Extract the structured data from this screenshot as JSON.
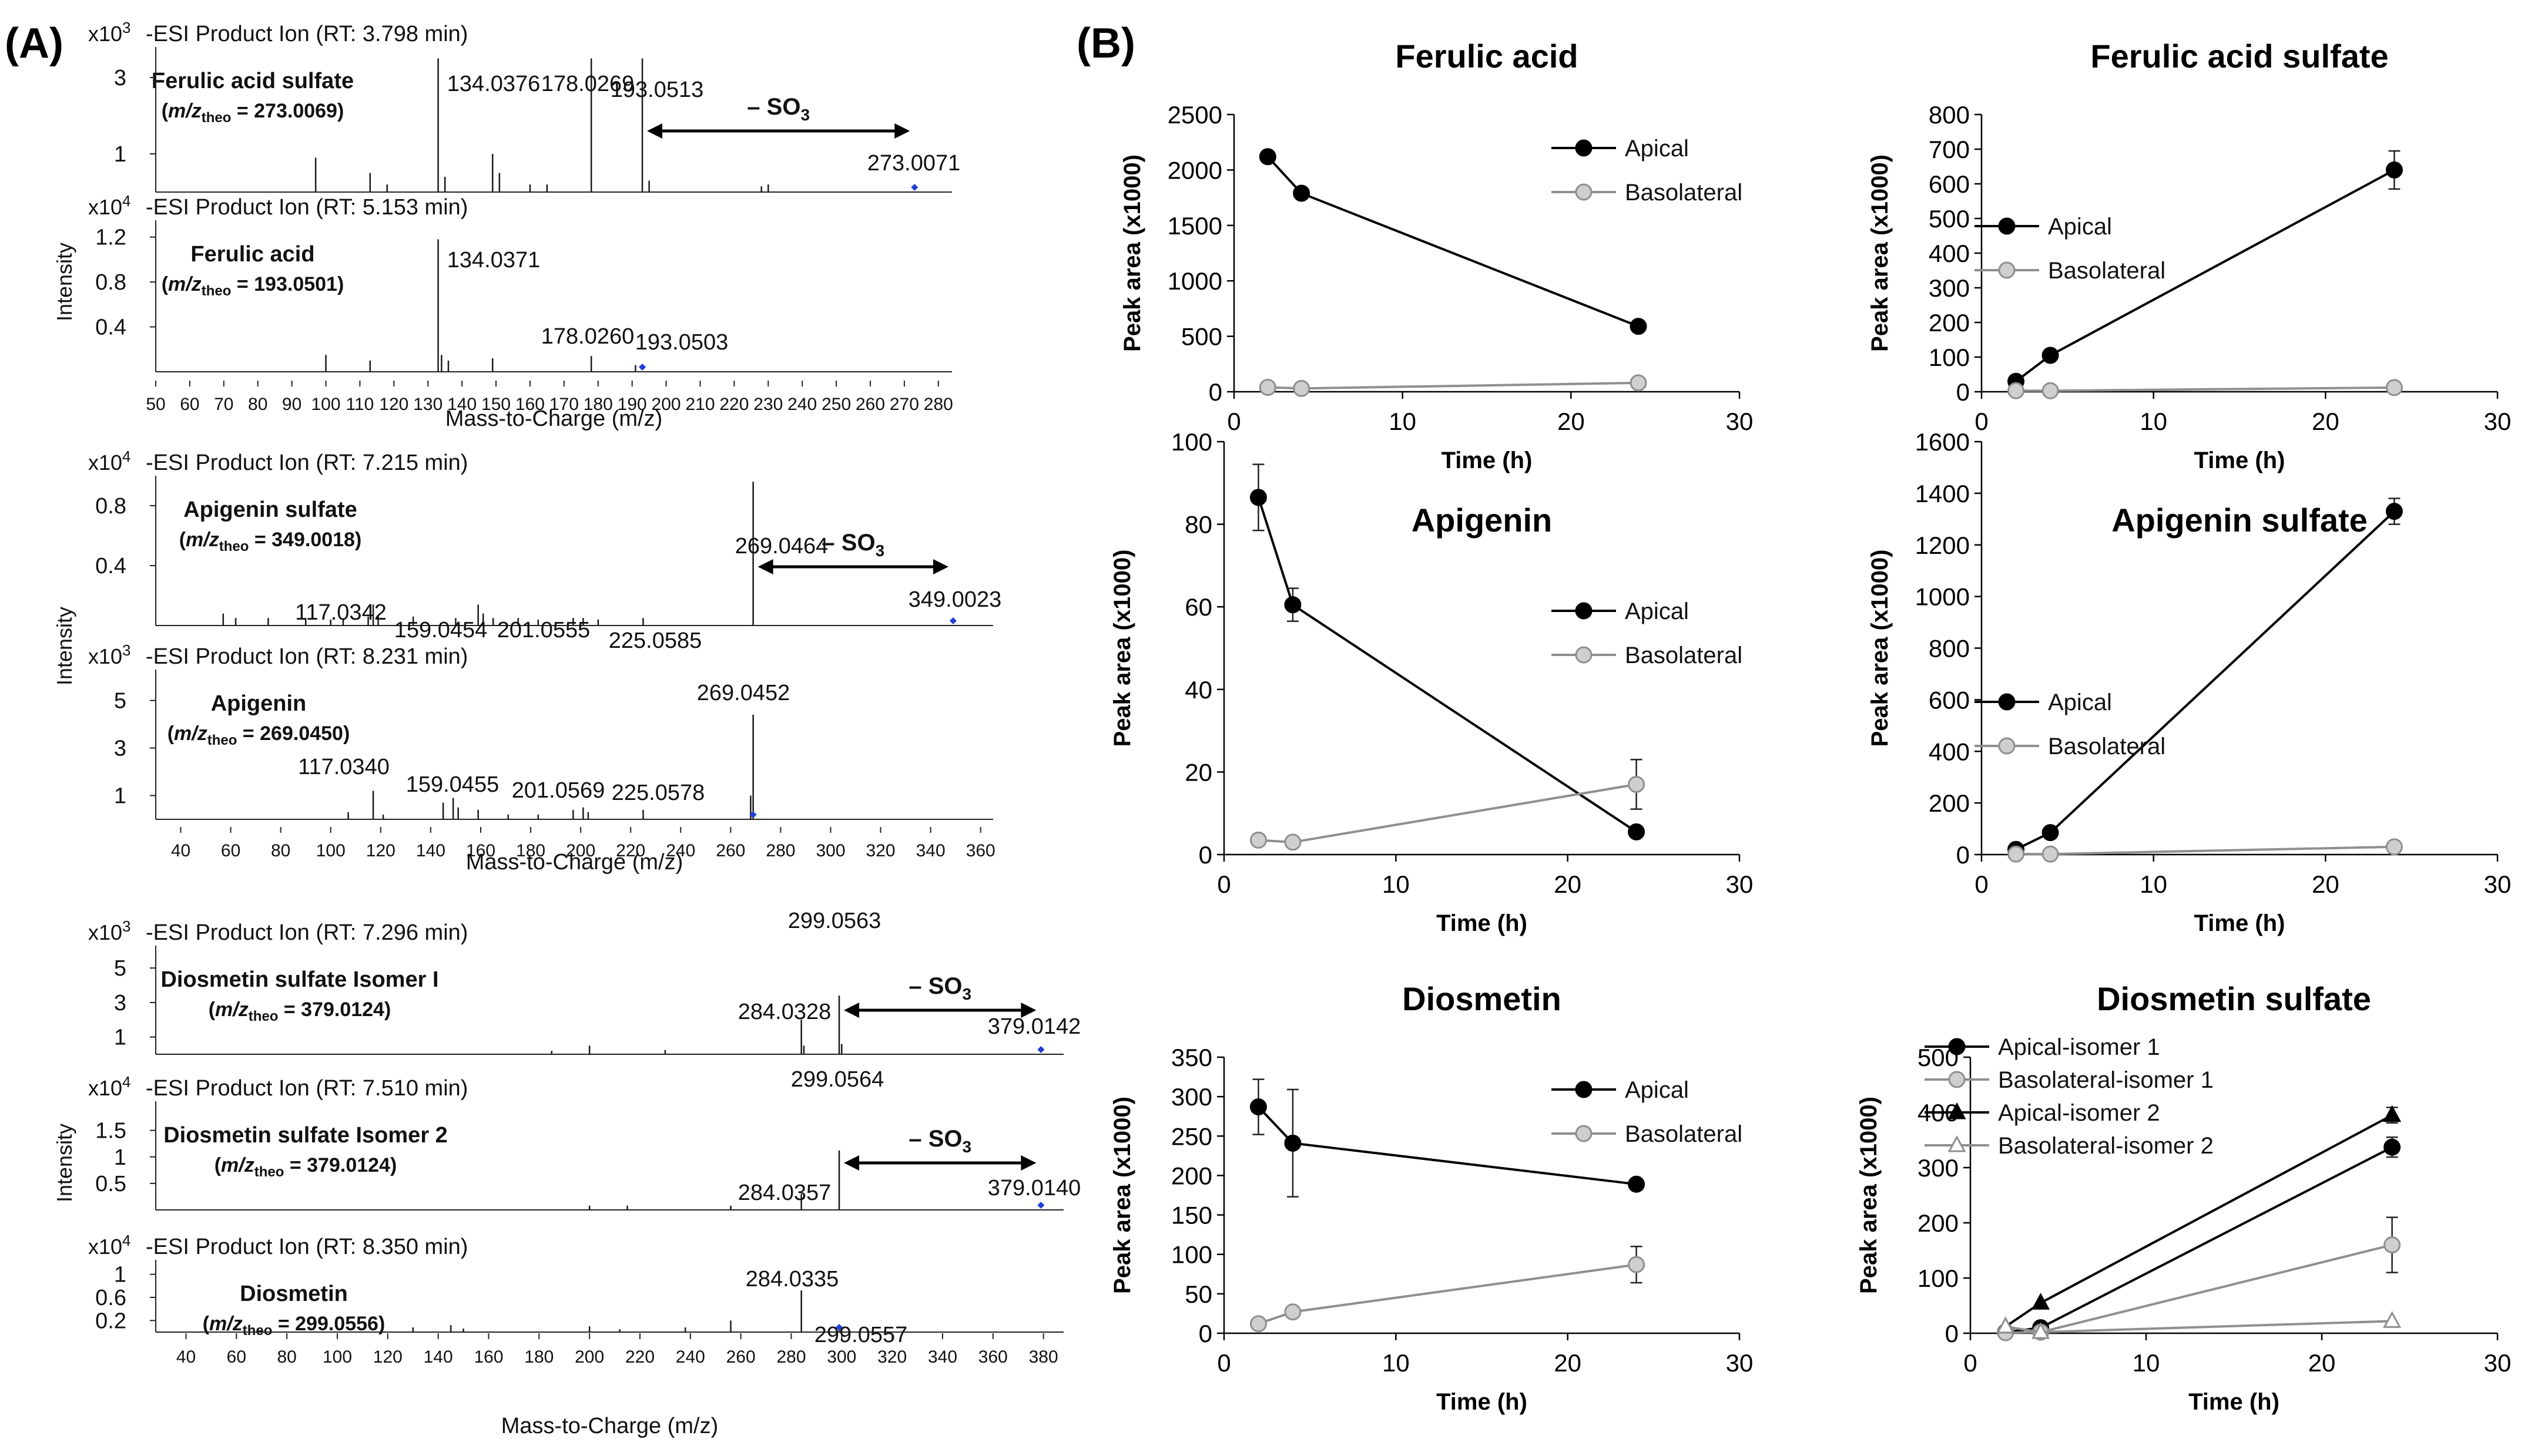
{
  "panel_labels": {
    "a": "(A)",
    "b": "(B)"
  },
  "colors": {
    "apical": "#000000",
    "basolateral": "#8f8f8f",
    "baso_fill": "#cfcfcf",
    "precursor": "#1f3fd6",
    "spectrum": "#1a1a1a"
  },
  "ms": {
    "intensity_label": "Intensity",
    "mz_label": "Mass-to-Charge (m/z)",
    "so3_label": "– SO",
    "so3_sub": "3",
    "groups": [
      {
        "x_ticks": [
          "50",
          "60",
          "70",
          "80",
          "90",
          "100",
          "110",
          "120",
          "130",
          "140",
          "150",
          "160",
          "170",
          "180",
          "190",
          "200",
          "210",
          "220",
          "230",
          "240",
          "250",
          "260",
          "270",
          "280"
        ],
        "spectra": [
          {
            "exp": "x10",
            "exp_sup": "3",
            "header": "-ESI Product Ion (RT: 3.798 min)",
            "name": "Ferulic acid sulfate",
            "mz_pre": "(m/z",
            "mz_sub": "theo",
            "mz_post": " = 273.0069)",
            "y_ticks": [
              "3",
              "1"
            ],
            "peak_labels": [
              "134.0376",
              "178.0269",
              "193.0513",
              "273.0071"
            ]
          },
          {
            "exp": "x10",
            "exp_sup": "4",
            "header": "-ESI Product Ion (RT: 5.153 min)",
            "name": "Ferulic acid",
            "mz_pre": "(m/z",
            "mz_sub": "theo",
            "mz_post": " = 193.0501)",
            "y_ticks": [
              "1.2",
              "0.8",
              "0.4"
            ],
            "peak_labels": [
              "134.0371",
              "178.0260",
              "193.0503"
            ]
          }
        ]
      },
      {
        "x_ticks": [
          "40",
          "60",
          "80",
          "100",
          "120",
          "140",
          "160",
          "180",
          "200",
          "220",
          "240",
          "260",
          "280",
          "300",
          "320",
          "340",
          "360"
        ],
        "spectra": [
          {
            "exp": "x10",
            "exp_sup": "4",
            "header": "-ESI Product Ion (RT: 7.215 min)",
            "name": "Apigenin sulfate",
            "mz_pre": "(m/z",
            "mz_sub": "theo",
            "mz_post": " = 349.0018)",
            "y_ticks": [
              "0.8",
              "0.4"
            ],
            "peak_labels": [
              "269.0464",
              "117.0342",
              "159.0454",
              "201.0555",
              "225.0585",
              "349.0023"
            ]
          },
          {
            "exp": "x10",
            "exp_sup": "3",
            "header": "-ESI Product Ion (RT: 8.231 min)",
            "name": "Apigenin",
            "mz_pre": "(m/z",
            "mz_sub": "theo",
            "mz_post": " = 269.0450)",
            "y_ticks": [
              "5",
              "3",
              "1"
            ],
            "peak_labels": [
              "269.0452",
              "117.0340",
              "159.0455",
              "201.0569",
              "225.0578"
            ]
          }
        ]
      },
      {
        "x_ticks": [
          "40",
          "60",
          "80",
          "100",
          "120",
          "140",
          "160",
          "180",
          "200",
          "220",
          "240",
          "260",
          "280",
          "300",
          "320",
          "340",
          "360",
          "380"
        ],
        "spectra": [
          {
            "exp": "x10",
            "exp_sup": "3",
            "header": "-ESI Product Ion (RT: 7.296 min)",
            "name": "Diosmetin sulfate Isomer I",
            "mz_pre": "(m/z",
            "mz_sub": "theo",
            "mz_post": " = 379.0124)",
            "y_ticks": [
              "5",
              "3",
              "1"
            ],
            "peak_labels": [
              "299.0563",
              "284.0328",
              "379.0142"
            ]
          },
          {
            "exp": "x10",
            "exp_sup": "4",
            "header": "-ESI Product Ion (RT: 7.510 min)",
            "name": "Diosmetin sulfate Isomer 2",
            "mz_pre": "(m/z",
            "mz_sub": "theo",
            "mz_post": " = 379.0124)",
            "y_ticks": [
              "1.5",
              "1",
              "0.5"
            ],
            "peak_labels": [
              "299.0564",
              "284.0357",
              "379.0140"
            ]
          },
          {
            "exp": "x10",
            "exp_sup": "4",
            "header": "-ESI Product Ion (RT: 8.350 min)",
            "name": "Diosmetin",
            "mz_pre": "(m/z",
            "mz_sub": "theo",
            "mz_post": " = 299.0556)",
            "y_ticks": [
              "1",
              "0.6",
              "0.2"
            ],
            "peak_labels": [
              "284.0335",
              "299.0557"
            ]
          }
        ]
      }
    ]
  },
  "chart_data": [
    {
      "type": "line",
      "title": "Ferulic acid",
      "xlabel": "Time (h)",
      "ylabel": "Peak area (x1000)",
      "xlim": [
        0,
        30
      ],
      "ylim": [
        0,
        2500
      ],
      "x_ticks": [
        0,
        10,
        20,
        30
      ],
      "y_ticks": [
        0,
        500,
        1000,
        1500,
        2000,
        2500
      ],
      "series": [
        {
          "name": "Apical",
          "style": "apical",
          "marker": "circle",
          "x": [
            2,
            4,
            24
          ],
          "y": [
            2120,
            1790,
            590
          ],
          "err": [
            0,
            50,
            0
          ]
        },
        {
          "name": "Basolateral",
          "style": "basolateral",
          "marker": "circle",
          "x": [
            2,
            4,
            24
          ],
          "y": [
            40,
            30,
            80
          ],
          "err": [
            0,
            0,
            0
          ]
        }
      ]
    },
    {
      "type": "line",
      "title": "Ferulic acid sulfate",
      "xlabel": "Time (h)",
      "ylabel": "Peak area (x1000)",
      "xlim": [
        0,
        30
      ],
      "ylim": [
        0,
        800
      ],
      "x_ticks": [
        0,
        10,
        20,
        30
      ],
      "y_ticks": [
        0,
        100,
        200,
        300,
        400,
        500,
        600,
        700,
        800
      ],
      "series": [
        {
          "name": "Apical",
          "style": "apical",
          "marker": "circle",
          "x": [
            2,
            4,
            24
          ],
          "y": [
            30,
            105,
            640
          ],
          "err": [
            15,
            0,
            55
          ]
        },
        {
          "name": "Basolateral",
          "style": "basolateral",
          "marker": "circle",
          "x": [
            2,
            4,
            24
          ],
          "y": [
            3,
            3,
            12
          ],
          "err": [
            0,
            0,
            0
          ]
        }
      ]
    },
    {
      "type": "line",
      "title": "Apigenin",
      "xlabel": "Time (h)",
      "ylabel": "Peak area (x1000)",
      "xlim": [
        0,
        30
      ],
      "ylim": [
        0,
        100
      ],
      "x_ticks": [
        0,
        10,
        20,
        30
      ],
      "y_ticks": [
        0,
        20,
        40,
        60,
        80,
        100
      ],
      "series": [
        {
          "name": "Apical",
          "style": "apical",
          "marker": "circle",
          "x": [
            2,
            4,
            24
          ],
          "y": [
            86.5,
            60.5,
            5.5
          ],
          "err": [
            8,
            4,
            0
          ]
        },
        {
          "name": "Basolateral",
          "style": "basolateral",
          "marker": "circle",
          "x": [
            2,
            4,
            24
          ],
          "y": [
            3.5,
            3,
            17
          ],
          "err": [
            0,
            0,
            6
          ]
        }
      ]
    },
    {
      "type": "line",
      "title": "Apigenin sulfate",
      "xlabel": "Time (h)",
      "ylabel": "Peak area (x1000)",
      "xlim": [
        0,
        30
      ],
      "ylim": [
        0,
        1600
      ],
      "x_ticks": [
        0,
        10,
        20,
        30
      ],
      "y_ticks": [
        0,
        200,
        400,
        600,
        800,
        1000,
        1200,
        1400,
        1600
      ],
      "series": [
        {
          "name": "Apical",
          "style": "apical",
          "marker": "circle",
          "x": [
            2,
            4,
            24
          ],
          "y": [
            20,
            85,
            1330
          ],
          "err": [
            0,
            0,
            50
          ]
        },
        {
          "name": "Basolateral",
          "style": "basolateral",
          "marker": "circle",
          "x": [
            2,
            4,
            24
          ],
          "y": [
            2,
            2,
            30
          ],
          "err": [
            0,
            0,
            0
          ]
        }
      ]
    },
    {
      "type": "line",
      "title": "Diosmetin",
      "xlabel": "Time (h)",
      "ylabel": "Peak area (x1000)",
      "xlim": [
        0,
        30
      ],
      "ylim": [
        0,
        350
      ],
      "x_ticks": [
        0,
        10,
        20,
        30
      ],
      "y_ticks": [
        0,
        50,
        100,
        150,
        200,
        250,
        300,
        350
      ],
      "series": [
        {
          "name": "Apical",
          "style": "apical",
          "marker": "circle",
          "x": [
            2,
            4,
            24
          ],
          "y": [
            287,
            241,
            189
          ],
          "err": [
            35,
            68,
            6
          ]
        },
        {
          "name": "Basolateral",
          "style": "basolateral",
          "marker": "circle",
          "x": [
            2,
            4,
            24
          ],
          "y": [
            12,
            27,
            87
          ],
          "err": [
            0,
            0,
            23
          ]
        }
      ]
    },
    {
      "type": "line",
      "title": "Diosmetin sulfate",
      "xlabel": "Time (h)",
      "ylabel": "Peak area (x1000)",
      "xlim": [
        0,
        30
      ],
      "ylim": [
        0,
        500
      ],
      "x_ticks": [
        0,
        10,
        20,
        30
      ],
      "y_ticks": [
        0,
        100,
        200,
        300,
        400,
        500
      ],
      "series": [
        {
          "name": "Apical-isomer 1",
          "style": "apical",
          "marker": "circle",
          "x": [
            2,
            4,
            24
          ],
          "y": [
            2,
            10,
            337
          ],
          "err": [
            0,
            0,
            18
          ]
        },
        {
          "name": "Basolateral-isomer 1",
          "style": "basolateral",
          "marker": "circle",
          "x": [
            2,
            4,
            24
          ],
          "y": [
            1,
            2,
            160
          ],
          "err": [
            0,
            0,
            50
          ]
        },
        {
          "name": "Apical-isomer 2",
          "style": "apical",
          "marker": "triangle",
          "x": [
            2,
            4,
            24
          ],
          "y": [
            12,
            55,
            395
          ],
          "err": [
            0,
            0,
            14
          ]
        },
        {
          "name": "Basolateral-isomer 2",
          "style": "basolateral",
          "marker": "triangle-open",
          "x": [
            2,
            4,
            24
          ],
          "y": [
            12,
            2,
            22
          ],
          "err": [
            0,
            0,
            0
          ]
        }
      ]
    }
  ]
}
